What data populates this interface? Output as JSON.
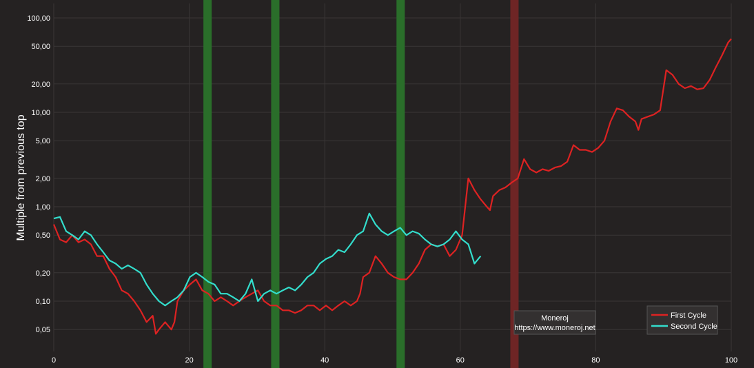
{
  "chart_data": {
    "type": "line",
    "ylabel": "Multiple from previous top",
    "xlabel": "",
    "y_scale": "log",
    "xlim": [
      0,
      100
    ],
    "ylim": [
      0.03,
      130
    ],
    "x_ticks": [
      {
        "value": 0,
        "label": "0"
      },
      {
        "value": 20,
        "label": "20"
      },
      {
        "value": 40,
        "label": "40"
      },
      {
        "value": 60,
        "label": "60"
      },
      {
        "value": 80,
        "label": "80"
      },
      {
        "value": 100,
        "label": "100"
      }
    ],
    "y_ticks": [
      {
        "value": 0.05,
        "label": "0,05"
      },
      {
        "value": 0.1,
        "label": "0,10"
      },
      {
        "value": 0.2,
        "label": "0,20"
      },
      {
        "value": 0.5,
        "label": "0,50"
      },
      {
        "value": 1,
        "label": "1,00"
      },
      {
        "value": 2,
        "label": "2,00"
      },
      {
        "value": 5,
        "label": "5,00"
      },
      {
        "value": 10,
        "label": "10,00"
      },
      {
        "value": 20,
        "label": "20,00"
      },
      {
        "value": 50,
        "label": "50,00"
      },
      {
        "value": 100,
        "label": "100,00"
      }
    ],
    "grid": true,
    "legend_position": "bottom-right",
    "vertical_bands": [
      {
        "x": 22.7,
        "color": "#2a6e2a"
      },
      {
        "x": 32.7,
        "color": "#2a6e2a"
      },
      {
        "x": 51.2,
        "color": "#2a6e2a"
      },
      {
        "x": 68.0,
        "color": "#6e2525"
      }
    ],
    "series": [
      {
        "name": "First Cycle",
        "color": "#dd2222",
        "points": [
          [
            0,
            0.65
          ],
          [
            1,
            0.45
          ],
          [
            2,
            0.42
          ],
          [
            3,
            0.5
          ],
          [
            4,
            0.42
          ],
          [
            5,
            0.45
          ],
          [
            6,
            0.4
          ],
          [
            7,
            0.3
          ],
          [
            8,
            0.3
          ],
          [
            9,
            0.22
          ],
          [
            10,
            0.18
          ],
          [
            11,
            0.13
          ],
          [
            12,
            0.12
          ],
          [
            13,
            0.1
          ],
          [
            14,
            0.08
          ],
          [
            15,
            0.06
          ],
          [
            16,
            0.07
          ],
          [
            16.5,
            0.045
          ],
          [
            17,
            0.05
          ],
          [
            18,
            0.06
          ],
          [
            19,
            0.05
          ],
          [
            19.5,
            0.06
          ],
          [
            20,
            0.1
          ],
          [
            21,
            0.13
          ],
          [
            22,
            0.15
          ],
          [
            23,
            0.17
          ],
          [
            24,
            0.13
          ],
          [
            25,
            0.12
          ],
          [
            26,
            0.1
          ],
          [
            27,
            0.11
          ],
          [
            28,
            0.1
          ],
          [
            29,
            0.09
          ],
          [
            30,
            0.1
          ],
          [
            31,
            0.11
          ],
          [
            32,
            0.12
          ],
          [
            33,
            0.13
          ],
          [
            34,
            0.1
          ],
          [
            35,
            0.09
          ],
          [
            36,
            0.09
          ],
          [
            37,
            0.08
          ],
          [
            38,
            0.08
          ],
          [
            39,
            0.075
          ],
          [
            40,
            0.08
          ],
          [
            41,
            0.09
          ],
          [
            42,
            0.09
          ],
          [
            43,
            0.08
          ],
          [
            44,
            0.09
          ],
          [
            45,
            0.08
          ],
          [
            46,
            0.09
          ],
          [
            47,
            0.1
          ],
          [
            48,
            0.09
          ],
          [
            49,
            0.1
          ],
          [
            49.5,
            0.12
          ],
          [
            50,
            0.18
          ],
          [
            51,
            0.2
          ],
          [
            52,
            0.3
          ],
          [
            53,
            0.25
          ],
          [
            54,
            0.2
          ],
          [
            55,
            0.18
          ],
          [
            56,
            0.17
          ],
          [
            57,
            0.17
          ],
          [
            58,
            0.2
          ],
          [
            59,
            0.25
          ],
          [
            60,
            0.35
          ],
          [
            61,
            0.4
          ],
          [
            62,
            0.38
          ],
          [
            63,
            0.4
          ],
          [
            64,
            0.3
          ],
          [
            65,
            0.35
          ],
          [
            66,
            0.5
          ],
          [
            67,
            2.0
          ],
          [
            68,
            1.5
          ],
          [
            69,
            1.2
          ],
          [
            70,
            1.0
          ],
          [
            70.5,
            0.92
          ],
          [
            71,
            1.3
          ],
          [
            72,
            1.5
          ],
          [
            73,
            1.6
          ],
          [
            74,
            1.8
          ],
          [
            75,
            2.0
          ],
          [
            76,
            3.2
          ],
          [
            77,
            2.5
          ],
          [
            78,
            2.3
          ],
          [
            79,
            2.5
          ],
          [
            80,
            2.4
          ],
          [
            81,
            2.6
          ],
          [
            82,
            2.7
          ],
          [
            83,
            3.0
          ],
          [
            84,
            4.5
          ],
          [
            85,
            4.0
          ],
          [
            86,
            4.0
          ],
          [
            87,
            3.8
          ],
          [
            88,
            4.2
          ],
          [
            89,
            5.0
          ],
          [
            90,
            8.0
          ],
          [
            91,
            11.0
          ],
          [
            92,
            10.5
          ],
          [
            93,
            9.0
          ],
          [
            94,
            8.0
          ],
          [
            94.5,
            6.5
          ],
          [
            95,
            8.5
          ],
          [
            96,
            9.0
          ],
          [
            97,
            9.5
          ],
          [
            98,
            10.5
          ],
          [
            99,
            28.0
          ],
          [
            100,
            25.0
          ],
          [
            101,
            20.0
          ],
          [
            102,
            18.0
          ],
          [
            103,
            19.0
          ],
          [
            104,
            17.5
          ],
          [
            105,
            18.0
          ],
          [
            106,
            22.0
          ],
          [
            107,
            30.0
          ],
          [
            108,
            40.0
          ],
          [
            109,
            55.0
          ],
          [
            109.5,
            60.0
          ]
        ]
      },
      {
        "name": "Second Cycle",
        "color": "#33ddcc",
        "points": [
          [
            0,
            0.75
          ],
          [
            1,
            0.78
          ],
          [
            2,
            0.55
          ],
          [
            3,
            0.5
          ],
          [
            4,
            0.45
          ],
          [
            5,
            0.55
          ],
          [
            6,
            0.5
          ],
          [
            7,
            0.4
          ],
          [
            8,
            0.33
          ],
          [
            9,
            0.27
          ],
          [
            10,
            0.25
          ],
          [
            11,
            0.22
          ],
          [
            12,
            0.24
          ],
          [
            13,
            0.22
          ],
          [
            14,
            0.2
          ],
          [
            15,
            0.15
          ],
          [
            16,
            0.12
          ],
          [
            17,
            0.1
          ],
          [
            18,
            0.09
          ],
          [
            19,
            0.1
          ],
          [
            20,
            0.11
          ],
          [
            21,
            0.13
          ],
          [
            22,
            0.18
          ],
          [
            23,
            0.2
          ],
          [
            24,
            0.18
          ],
          [
            25,
            0.16
          ],
          [
            26,
            0.15
          ],
          [
            27,
            0.12
          ],
          [
            28,
            0.12
          ],
          [
            29,
            0.11
          ],
          [
            30,
            0.1
          ],
          [
            31,
            0.12
          ],
          [
            32,
            0.17
          ],
          [
            33,
            0.1
          ],
          [
            34,
            0.12
          ],
          [
            35,
            0.13
          ],
          [
            36,
            0.12
          ],
          [
            37,
            0.13
          ],
          [
            38,
            0.14
          ],
          [
            39,
            0.13
          ],
          [
            40,
            0.15
          ],
          [
            41,
            0.18
          ],
          [
            42,
            0.2
          ],
          [
            43,
            0.25
          ],
          [
            44,
            0.28
          ],
          [
            45,
            0.3
          ],
          [
            46,
            0.35
          ],
          [
            47,
            0.33
          ],
          [
            48,
            0.4
          ],
          [
            49,
            0.5
          ],
          [
            50,
            0.55
          ],
          [
            51,
            0.85
          ],
          [
            52,
            0.65
          ],
          [
            53,
            0.55
          ],
          [
            54,
            0.5
          ],
          [
            55,
            0.55
          ],
          [
            56,
            0.6
          ],
          [
            57,
            0.5
          ],
          [
            58,
            0.55
          ],
          [
            59,
            0.52
          ],
          [
            60,
            0.45
          ],
          [
            61,
            0.4
          ],
          [
            62,
            0.38
          ],
          [
            63,
            0.4
          ],
          [
            64,
            0.45
          ],
          [
            65,
            0.55
          ],
          [
            66,
            0.45
          ],
          [
            67,
            0.4
          ],
          [
            68,
            0.25
          ],
          [
            69,
            0.3
          ]
        ]
      }
    ]
  },
  "watermark": {
    "title": "Moneroj",
    "url": "https://www.moneroj.net"
  },
  "legend": {
    "items": [
      {
        "label": "First Cycle",
        "color": "#dd2222"
      },
      {
        "label": "Second Cycle",
        "color": "#33ddcc"
      }
    ]
  }
}
